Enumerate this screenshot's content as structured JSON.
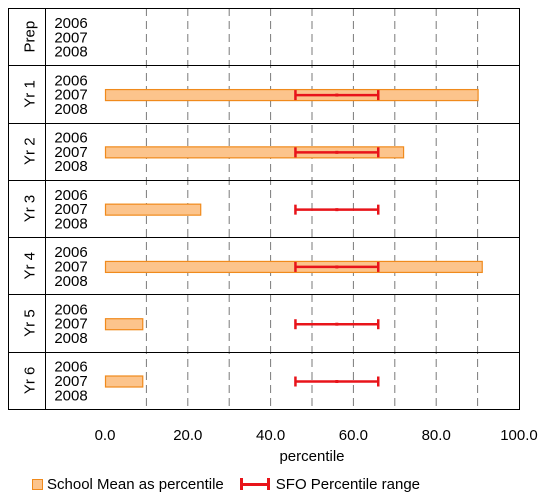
{
  "chart_data": {
    "type": "bar",
    "orientation": "horizontal",
    "groups": [
      {
        "label": "Prep",
        "years": [
          "2006",
          "2007",
          "2008"
        ]
      },
      {
        "label": "Yr 1",
        "years": [
          "2006",
          "2007",
          "2008"
        ]
      },
      {
        "label": "Yr 2",
        "years": [
          "2006",
          "2007",
          "2008"
        ]
      },
      {
        "label": "Yr 3",
        "years": [
          "2006",
          "2007",
          "2008"
        ]
      },
      {
        "label": "Yr 4",
        "years": [
          "2006",
          "2007",
          "2008"
        ]
      },
      {
        "label": "Yr 5",
        "years": [
          "2006",
          "2007",
          "2008"
        ]
      },
      {
        "label": "Yr 6",
        "years": [
          "2006",
          "2007",
          "2008"
        ]
      }
    ],
    "series": [
      {
        "name": "School Mean as percentile",
        "values": [
          [
            null,
            null,
            null
          ],
          [
            null,
            90,
            null
          ],
          [
            null,
            72,
            null
          ],
          [
            null,
            23,
            null
          ],
          [
            null,
            91,
            null
          ],
          [
            null,
            9,
            null
          ],
          [
            null,
            9,
            null
          ]
        ]
      },
      {
        "name": "SFO Percentile range",
        "ranges": [
          [
            null,
            null,
            null
          ],
          [
            null,
            {
              "low": 46,
              "mid": 56,
              "high": 66
            },
            null
          ],
          [
            null,
            {
              "low": 46,
              "mid": 56,
              "high": 66
            },
            null
          ],
          [
            null,
            {
              "low": 46,
              "mid": 56,
              "high": 66
            },
            null
          ],
          [
            null,
            {
              "low": 46,
              "mid": 56,
              "high": 66
            },
            null
          ],
          [
            null,
            {
              "low": 46,
              "mid": 56,
              "high": 66
            },
            null
          ],
          [
            null,
            {
              "low": 46,
              "mid": 56,
              "high": 66
            },
            null
          ]
        ]
      }
    ],
    "xlabel": "percentile",
    "xlim": [
      0,
      100
    ],
    "xticks": [
      "0.0",
      "20.0",
      "40.0",
      "60.0",
      "80.0",
      "100.0"
    ],
    "grid": "vertical dashed every 10",
    "legend_placement": "bottom",
    "colors": {
      "bar_fill": "#fcc48c",
      "bar_edge": "#f08a1c",
      "range": "#e8141a"
    }
  }
}
